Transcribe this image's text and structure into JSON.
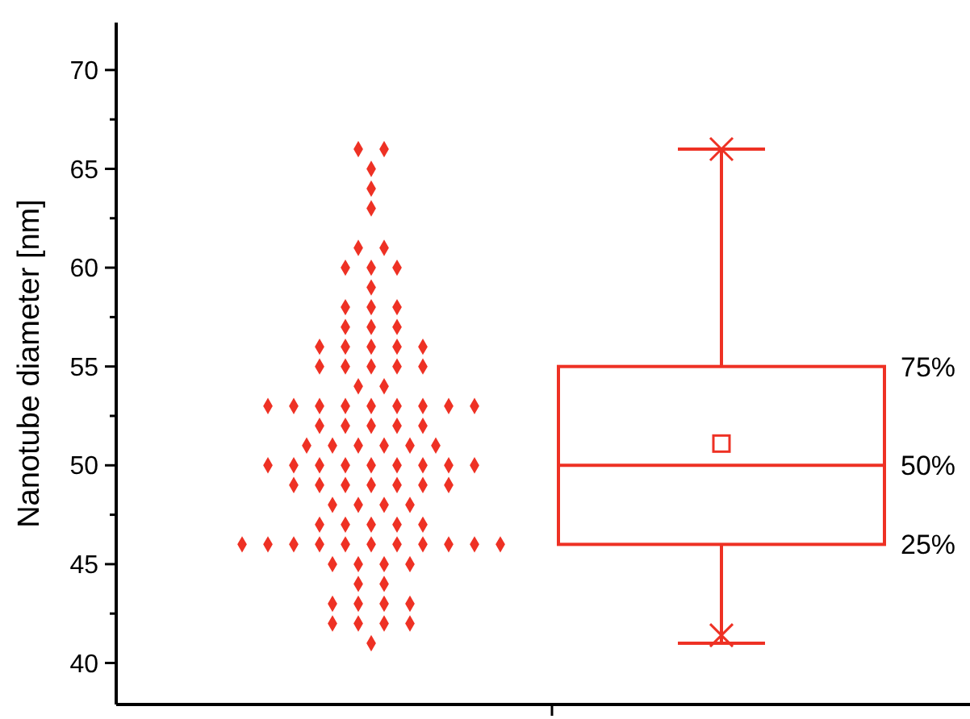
{
  "chart_data": {
    "type": "box",
    "ylabel": "Nanotube diameter [nm]",
    "categories": [
      null
    ],
    "ylim": [
      37.9,
      72.4
    ],
    "yticks": [
      40,
      {
        "value": 42.5,
        "label": null
      },
      45,
      {
        "value": 47.5,
        "label": null
      },
      50,
      {
        "value": 52.5,
        "label": null
      },
      55,
      {
        "value": 57.5,
        "label": null
      },
      60,
      {
        "value": 62.5,
        "label": null
      },
      65,
      {
        "value": 67.5,
        "label": null
      },
      70
    ],
    "marker": "diamond",
    "series": [
      {
        "type": "scatter",
        "color": "#ee3124",
        "x": [
          null,
          null,
          null,
          null,
          null,
          null,
          null,
          null,
          null,
          null,
          null,
          null,
          null,
          null,
          null,
          null,
          null,
          null,
          null,
          null,
          null,
          null,
          null,
          null,
          null,
          null,
          null,
          null,
          null,
          null,
          null,
          null,
          null,
          null,
          null,
          null,
          null,
          null,
          null,
          null,
          null,
          null,
          null,
          null,
          null,
          null,
          null,
          null,
          null,
          null,
          null,
          null,
          null,
          null,
          null,
          null,
          null,
          null,
          null,
          null,
          null,
          null,
          null,
          null,
          null,
          null,
          null,
          null,
          null,
          null,
          null,
          null,
          null,
          null,
          null,
          null,
          null,
          null,
          null,
          null,
          null,
          null,
          null,
          null,
          null,
          null,
          null,
          null,
          null,
          null,
          null,
          null,
          null,
          null,
          null,
          null,
          null,
          null,
          null,
          null
        ],
        "values": [
          66,
          66,
          65,
          64,
          63,
          61,
          61,
          60,
          60,
          60,
          59,
          58,
          58,
          58,
          57,
          57,
          57,
          56,
          56,
          56,
          56,
          56,
          55,
          55,
          55,
          55,
          55,
          54,
          54,
          53,
          53,
          53,
          53,
          53,
          53,
          53,
          53,
          53,
          52,
          52,
          52,
          52,
          52,
          51,
          51,
          51,
          51,
          51,
          51,
          50,
          50,
          50,
          50,
          50,
          50,
          50,
          50,
          50,
          49,
          49,
          49,
          49,
          49,
          49,
          49,
          48,
          48,
          48,
          48,
          47,
          47,
          47,
          47,
          47,
          46,
          46,
          46,
          46,
          46,
          46,
          46,
          46,
          46,
          46,
          46,
          45,
          45,
          45,
          45,
          44,
          44,
          43,
          43,
          43,
          43,
          42,
          42,
          42,
          42,
          41
        ]
      },
      {
        "type": "box",
        "color": "#ee3124",
        "boxes": [
          {
            "low": 41,
            "q1": 46,
            "median": 50,
            "q3": 55,
            "high": 66,
            "mean": 51.1,
            "outliers": [
              66,
              41.4
            ]
          }
        ]
      }
    ],
    "annotations": [
      "75%",
      "50%",
      "25%"
    ]
  }
}
